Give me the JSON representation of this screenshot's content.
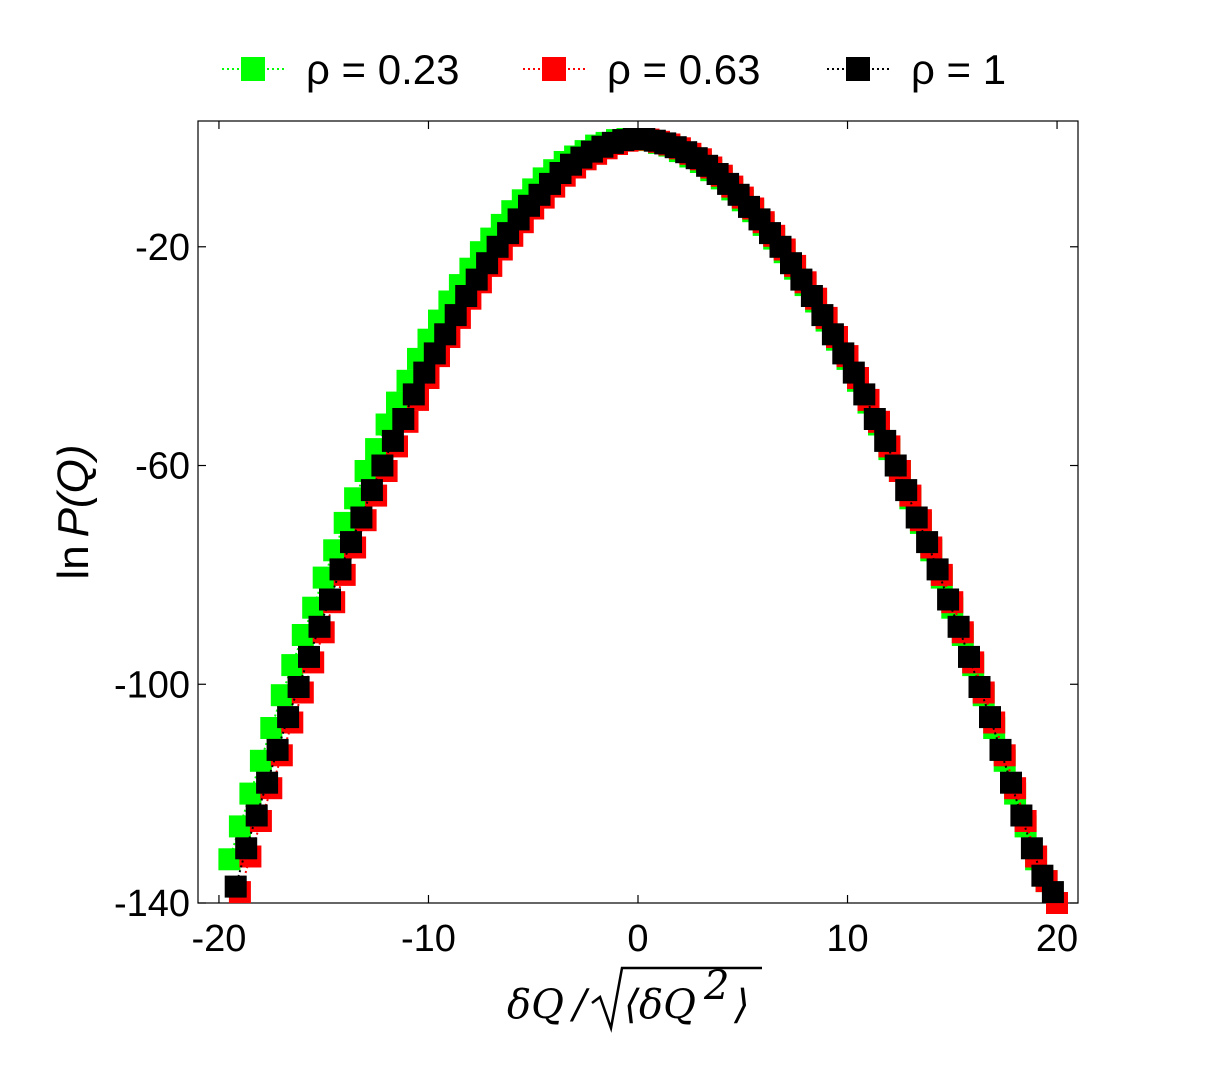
{
  "chart_data": {
    "type": "scatter",
    "title": "",
    "xlabel": "δQ/√⟨δQ²⟩",
    "ylabel": "ln P(Q)",
    "xlim": [
      -21,
      21
    ],
    "ylim": [
      -140,
      3
    ],
    "xticks": [
      -20,
      -10,
      0,
      10,
      20
    ],
    "xtick_labels": [
      "-20",
      "-10",
      "0",
      "10",
      "20"
    ],
    "yticks": [
      -20,
      -60,
      -100,
      -140
    ],
    "ytick_labels": [
      "-20",
      "-60",
      "-100",
      "-140"
    ],
    "grid": false,
    "legend_position": "top",
    "series": [
      {
        "name": "ρ = 0.23",
        "color": "#00ff00",
        "marker": "square",
        "line": "dotted",
        "x": [
          -19.5,
          -19.0,
          -18.5,
          -18.0,
          -17.5,
          -17.0,
          -16.5,
          -16.0,
          -15.5,
          -15.0,
          -14.5,
          -14.0,
          -13.5,
          -13.0,
          -12.5,
          -12.0,
          -11.5,
          -11.0,
          -10.5,
          -10.0,
          -9.5,
          -9.0,
          -8.5,
          -8.0,
          -7.5,
          -7.0,
          -6.5,
          -6.0,
          -5.5,
          -5.0,
          -4.5,
          -4.0,
          -3.5,
          -3.0,
          -2.5,
          -2.0,
          -1.5,
          -1.0,
          -0.5,
          0.0,
          0.5,
          1.0,
          1.5,
          2.0,
          2.5,
          3.0,
          3.5,
          4.0,
          4.5,
          5.0,
          5.5,
          6.0,
          6.5,
          7.0,
          7.5,
          8.0,
          8.5,
          9.0,
          9.5,
          10.0,
          10.5,
          11.0,
          11.5,
          12.0,
          12.5,
          13.0,
          13.5,
          14.0,
          14.5,
          15.0,
          15.5,
          16.0,
          16.5,
          17.0,
          17.5,
          18.0,
          18.5,
          19.0,
          19.5
        ],
        "y": [
          -132.0,
          -126.0,
          -120.0,
          -114.0,
          -108.0,
          -102.0,
          -96.5,
          -91.0,
          -86.0,
          -80.5,
          -75.5,
          -70.5,
          -66.0,
          -61.0,
          -57.0,
          -52.5,
          -48.5,
          -44.5,
          -40.5,
          -37.0,
          -33.5,
          -30.0,
          -27.0,
          -24.0,
          -21.0,
          -18.5,
          -16.0,
          -13.5,
          -11.5,
          -9.5,
          -7.5,
          -6.0,
          -4.5,
          -3.5,
          -2.5,
          -1.5,
          -1.0,
          -0.5,
          -0.3,
          -0.3,
          -0.5,
          -1.0,
          -1.5,
          -2.5,
          -3.5,
          -4.5,
          -6.0,
          -7.5,
          -9.5,
          -11.5,
          -13.5,
          -16.0,
          -18.5,
          -21.0,
          -24.0,
          -27.0,
          -30.0,
          -33.5,
          -37.0,
          -40.5,
          -44.5,
          -48.5,
          -52.5,
          -57.0,
          -61.0,
          -66.0,
          -70.5,
          -75.5,
          -80.5,
          -86.0,
          -91.0,
          -96.5,
          -102.0,
          -108.0,
          -114.0,
          -120.0,
          -126.0,
          -132.0,
          -136.0
        ]
      },
      {
        "name": "ρ = 0.63",
        "color": "#ff0000",
        "marker": "square",
        "line": "dotted",
        "x": [
          -19.0,
          -18.5,
          -18.0,
          -17.5,
          -17.0,
          -16.5,
          -16.0,
          -15.5,
          -15.0,
          -14.5,
          -14.0,
          -13.5,
          -13.0,
          -12.5,
          -12.0,
          -11.5,
          -11.0,
          -10.5,
          -10.0,
          -9.5,
          -9.0,
          -8.5,
          -8.0,
          -7.5,
          -7.0,
          -6.5,
          -6.0,
          -5.5,
          -5.0,
          -4.5,
          -4.0,
          -3.5,
          -3.0,
          -2.5,
          -2.0,
          -1.5,
          -1.0,
          -0.5,
          0.0,
          0.5,
          1.0,
          1.5,
          2.0,
          2.5,
          3.0,
          3.5,
          4.0,
          4.5,
          5.0,
          5.5,
          6.0,
          6.5,
          7.0,
          7.5,
          8.0,
          8.5,
          9.0,
          9.5,
          10.0,
          10.5,
          11.0,
          11.5,
          12.0,
          12.5,
          13.0,
          13.5,
          14.0,
          14.5,
          15.0,
          15.5,
          16.0,
          16.5,
          17.0,
          17.5,
          18.0,
          18.5,
          19.0,
          19.5,
          20.0
        ],
        "y": [
          -138.0,
          -131.5,
          -125.0,
          -119.0,
          -113.0,
          -107.0,
          -101.5,
          -96.0,
          -90.5,
          -85.0,
          -80.0,
          -75.0,
          -70.0,
          -65.5,
          -61.0,
          -56.5,
          -52.0,
          -48.0,
          -44.0,
          -40.0,
          -36.5,
          -33.0,
          -29.5,
          -26.5,
          -23.5,
          -20.5,
          -18.0,
          -15.5,
          -13.0,
          -11.0,
          -9.0,
          -7.0,
          -5.5,
          -4.0,
          -3.0,
          -2.0,
          -1.2,
          -0.6,
          -0.4,
          -0.4,
          -0.8,
          -1.3,
          -2.0,
          -3.0,
          -4.0,
          -5.5,
          -7.0,
          -9.0,
          -11.0,
          -13.0,
          -15.5,
          -18.0,
          -20.5,
          -23.5,
          -26.5,
          -29.5,
          -33.0,
          -36.5,
          -40.0,
          -44.0,
          -48.0,
          -52.0,
          -56.5,
          -61.0,
          -65.5,
          -70.0,
          -75.0,
          -80.0,
          -85.0,
          -90.5,
          -96.0,
          -101.5,
          -107.0,
          -113.0,
          -119.0,
          -125.0,
          -131.5,
          -136.0,
          -140.0
        ]
      },
      {
        "name": "ρ = 1",
        "color": "#000000",
        "marker": "square",
        "line": "dotted",
        "x": [
          -19.2,
          -18.7,
          -18.2,
          -17.7,
          -17.2,
          -16.7,
          -16.2,
          -15.7,
          -15.2,
          -14.7,
          -14.2,
          -13.7,
          -13.2,
          -12.7,
          -12.2,
          -11.7,
          -11.2,
          -10.7,
          -10.2,
          -9.7,
          -9.2,
          -8.7,
          -8.2,
          -7.7,
          -7.2,
          -6.7,
          -6.2,
          -5.7,
          -5.2,
          -4.7,
          -4.2,
          -3.7,
          -3.2,
          -2.7,
          -2.2,
          -1.7,
          -1.2,
          -0.7,
          -0.2,
          0.3,
          0.8,
          1.3,
          1.8,
          2.3,
          2.8,
          3.3,
          3.8,
          4.3,
          4.8,
          5.3,
          5.8,
          6.3,
          6.8,
          7.3,
          7.8,
          8.3,
          8.8,
          9.3,
          9.8,
          10.3,
          10.8,
          11.3,
          11.8,
          12.3,
          12.8,
          13.3,
          13.8,
          14.3,
          14.8,
          15.3,
          15.8,
          16.3,
          16.8,
          17.3,
          17.8,
          18.3,
          18.8,
          19.3,
          19.8
        ],
        "y": [
          -137.0,
          -130.0,
          -124.0,
          -118.0,
          -112.0,
          -106.0,
          -100.5,
          -95.0,
          -89.5,
          -84.5,
          -79.0,
          -74.0,
          -69.5,
          -64.5,
          -60.0,
          -55.5,
          -51.5,
          -47.0,
          -43.0,
          -39.5,
          -36.0,
          -32.5,
          -29.0,
          -26.0,
          -23.0,
          -20.0,
          -17.5,
          -15.0,
          -12.5,
          -10.5,
          -8.5,
          -6.5,
          -5.0,
          -3.7,
          -2.6,
          -1.7,
          -1.0,
          -0.5,
          -0.3,
          -0.3,
          -0.6,
          -1.1,
          -1.8,
          -2.7,
          -3.8,
          -5.2,
          -6.7,
          -8.5,
          -10.5,
          -12.7,
          -15.0,
          -17.5,
          -20.0,
          -23.0,
          -26.0,
          -29.0,
          -32.5,
          -36.0,
          -39.5,
          -43.0,
          -47.0,
          -51.5,
          -55.5,
          -60.0,
          -64.5,
          -69.5,
          -74.0,
          -79.0,
          -84.5,
          -89.5,
          -95.0,
          -100.5,
          -106.0,
          -112.0,
          -118.0,
          -124.0,
          -130.0,
          -135.0,
          -138.0
        ]
      }
    ]
  }
}
